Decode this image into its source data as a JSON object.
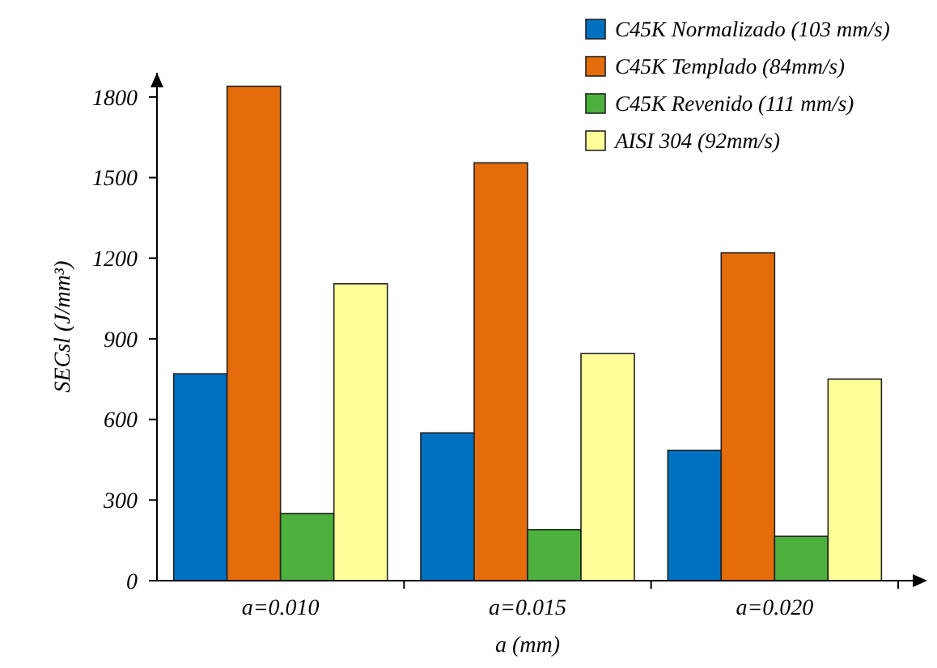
{
  "chart_data": {
    "type": "bar",
    "ylabel": "SECsl (J/mm³)",
    "xlabel": "a (mm)",
    "categories": [
      "a=0.010",
      "a=0.015",
      "a=0.020"
    ],
    "series": [
      {
        "name": "C45K Normalizado (103 mm/s)",
        "color": "#0070c0",
        "values": [
          770,
          550,
          485
        ]
      },
      {
        "name": "C45K Templado (84mm/s)",
        "color": "#e46c0a",
        "values": [
          1840,
          1555,
          1220
        ]
      },
      {
        "name": "C45K Revenido (111 mm/s)",
        "color": "#4bb03c",
        "values": [
          250,
          190,
          165
        ]
      },
      {
        "name": "AISI 304 (92mm/s)",
        "color": "#ffff99",
        "values": [
          1105,
          845,
          750
        ]
      }
    ],
    "ylim": [
      0,
      1890
    ],
    "yticks": [
      0,
      300,
      600,
      900,
      1200,
      1500,
      1800
    ],
    "grid": false,
    "legend": "top right"
  }
}
